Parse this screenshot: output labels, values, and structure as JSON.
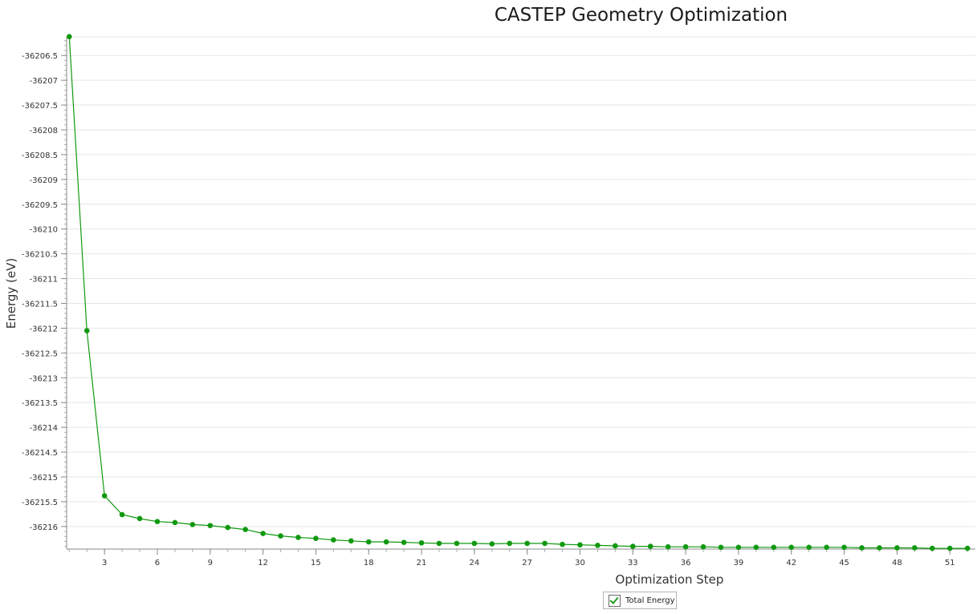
{
  "chart_data": {
    "type": "line",
    "title": "CASTEP Geometry Optimization",
    "xlabel": "Optimization Step",
    "ylabel": "Energy (eV)",
    "xlim": [
      0.85,
      52.45
    ],
    "ylim": [
      -36216.455,
      -36206.125
    ],
    "x_ticks": [
      3,
      6,
      9,
      12,
      15,
      18,
      21,
      24,
      27,
      30,
      33,
      36,
      39,
      42,
      45,
      48,
      51
    ],
    "y_ticks": [
      -36206.5,
      -36207,
      -36207.5,
      -36208,
      -36208.5,
      -36209,
      -36209.5,
      -36210,
      -36210.5,
      -36211,
      -36211.5,
      -36212,
      -36212.5,
      -36213,
      -36213.5,
      -36214,
      -36214.5,
      -36215,
      -36215.5,
      -36216
    ],
    "grid": true,
    "legend_position": "bottom",
    "colors": {
      "series": "#109910",
      "grid": "#e6e6e6",
      "axis": "#8a8a8a"
    },
    "series": [
      {
        "name": "Total Energy",
        "x": [
          1,
          2,
          3,
          4,
          5,
          6,
          7,
          8,
          9,
          10,
          11,
          12,
          13,
          14,
          15,
          16,
          17,
          18,
          19,
          20,
          21,
          22,
          23,
          24,
          25,
          26,
          27,
          28,
          29,
          30,
          31,
          32,
          33,
          34,
          35,
          36,
          37,
          38,
          39,
          40,
          41,
          42,
          43,
          44,
          45,
          46,
          47,
          48,
          49,
          50,
          51,
          52
        ],
        "values": [
          -36206.12,
          -36212.05,
          -36215.38,
          -36215.76,
          -36215.84,
          -36215.9,
          -36215.92,
          -36215.96,
          -36215.98,
          -36216.02,
          -36216.06,
          -36216.14,
          -36216.19,
          -36216.22,
          -36216.24,
          -36216.27,
          -36216.29,
          -36216.31,
          -36216.31,
          -36216.32,
          -36216.33,
          -36216.34,
          -36216.34,
          -36216.34,
          -36216.35,
          -36216.34,
          -36216.34,
          -36216.34,
          -36216.36,
          -36216.37,
          -36216.38,
          -36216.39,
          -36216.4,
          -36216.4,
          -36216.41,
          -36216.41,
          -36216.41,
          -36216.42,
          -36216.42,
          -36216.42,
          -36216.42,
          -36216.42,
          -36216.42,
          -36216.42,
          -36216.42,
          -36216.43,
          -36216.43,
          -36216.43,
          -36216.43,
          -36216.44,
          -36216.44,
          -36216.44
        ]
      }
    ]
  }
}
